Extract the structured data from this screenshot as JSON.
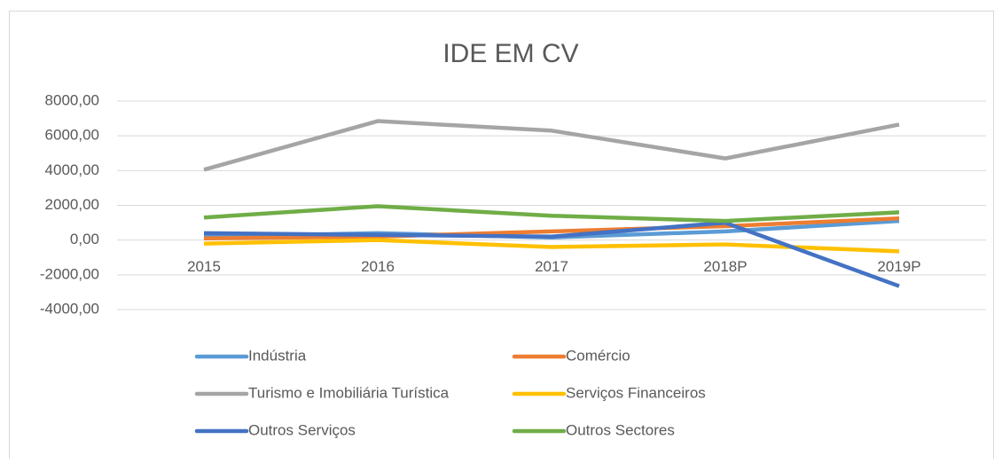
{
  "chart_data": {
    "type": "line",
    "title": "IDE EM CV",
    "categories": [
      "2015",
      "2016",
      "2017",
      "2018P",
      "2019P"
    ],
    "series": [
      {
        "name": "Indústria",
        "color": "#5b9bd5",
        "values": [
          200,
          400,
          150,
          500,
          1100
        ]
      },
      {
        "name": "Comércio",
        "color": "#ed7d31",
        "values": [
          100,
          200,
          500,
          800,
          1250
        ]
      },
      {
        "name": "Turismo e Imobiliária Turística",
        "color": "#a5a5a5",
        "values": [
          4050,
          6850,
          6300,
          4700,
          6650
        ]
      },
      {
        "name": "Serviços Financeiros",
        "color": "#ffc000",
        "values": [
          -200,
          0,
          -400,
          -250,
          -650
        ]
      },
      {
        "name": "Outros Serviços",
        "color": "#4472c4",
        "values": [
          400,
          300,
          200,
          1000,
          -2650
        ]
      },
      {
        "name": "Outros Sectores",
        "color": "#70ad47",
        "values": [
          1300,
          1950,
          1400,
          1100,
          1600
        ]
      }
    ],
    "ylim": [
      -4000,
      8000
    ],
    "yticks": [
      {
        "value": -4000,
        "label": "-4000,00"
      },
      {
        "value": -2000,
        "label": "-2000,00"
      },
      {
        "value": 0,
        "label": "0,00"
      },
      {
        "value": 2000,
        "label": "2000,00"
      },
      {
        "value": 4000,
        "label": "4000,00"
      },
      {
        "value": 6000,
        "label": "6000,00"
      },
      {
        "value": 8000,
        "label": "8000,00"
      }
    ],
    "grid": true,
    "legend": "bottom"
  }
}
